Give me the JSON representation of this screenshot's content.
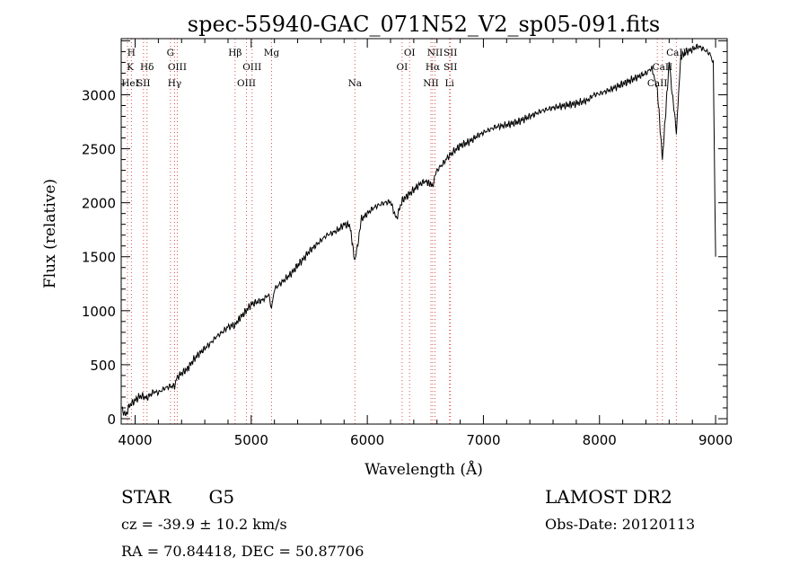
{
  "chart_data": {
    "type": "line",
    "title": "spec-55940-GAC_071N52_V2_sp05-091.fits",
    "xlabel": "Wavelength (Å)",
    "ylabel": "Flux (relative)",
    "xlim": [
      3880,
      9100
    ],
    "ylim": [
      -50,
      3520
    ],
    "xticks": [
      4000,
      5000,
      6000,
      7000,
      8000,
      9000
    ],
    "yticks": [
      0,
      500,
      1000,
      1500,
      2000,
      2500,
      3000
    ],
    "grid": false,
    "series": [
      {
        "x": [
          3890,
          3920,
          3950,
          3980,
          4000,
          4030,
          4060,
          4100,
          4130,
          4160,
          4200,
          4250,
          4300,
          4340,
          4360,
          4400,
          4450,
          4500,
          4550,
          4600,
          4650,
          4700,
          4750,
          4800,
          4861,
          4900,
          4950,
          5000,
          5050,
          5100,
          5150,
          5175,
          5200,
          5250,
          5300,
          5350,
          5400,
          5450,
          5500,
          5550,
          5600,
          5650,
          5700,
          5750,
          5800,
          5850,
          5893,
          5950,
          6000,
          6050,
          6100,
          6150,
          6200,
          6250,
          6300,
          6350,
          6400,
          6450,
          6500,
          6563,
          6600,
          6650,
          6700,
          6750,
          6800,
          6850,
          6900,
          6950,
          7000,
          7100,
          7200,
          7300,
          7400,
          7500,
          7600,
          7700,
          7800,
          7900,
          7950,
          8000,
          8100,
          8200,
          8300,
          8400,
          8450,
          8498,
          8542,
          8600,
          8662,
          8700,
          8750,
          8800,
          8850,
          8900,
          8950,
          8980,
          9000
        ],
        "y": [
          80,
          30,
          120,
          150,
          170,
          200,
          210,
          190,
          220,
          250,
          240,
          280,
          300,
          300,
          380,
          420,
          460,
          540,
          600,
          650,
          700,
          760,
          800,
          850,
          870,
          930,
          990,
          1060,
          1080,
          1100,
          1150,
          1020,
          1200,
          1250,
          1300,
          1350,
          1420,
          1480,
          1550,
          1600,
          1650,
          1700,
          1720,
          1750,
          1800,
          1790,
          1450,
          1850,
          1900,
          1950,
          1980,
          2000,
          2010,
          1850,
          2020,
          2070,
          2120,
          2170,
          2200,
          2160,
          2300,
          2360,
          2430,
          2480,
          2530,
          2550,
          2580,
          2620,
          2650,
          2700,
          2720,
          2750,
          2800,
          2850,
          2880,
          2900,
          2920,
          2950,
          3000,
          3010,
          3050,
          3100,
          3150,
          3200,
          3250,
          3050,
          2400,
          3300,
          2650,
          3350,
          3400,
          3420,
          3450,
          3420,
          3380,
          3300,
          1500
        ]
      }
    ],
    "lines": [
      {
        "wave": 3820,
        "labels": [
          {
            "row": 3,
            "text": "HeI"
          }
        ]
      },
      {
        "wave": 3934,
        "labels": [
          {
            "row": 2,
            "text": "K"
          }
        ]
      },
      {
        "wave": 3968,
        "labels": [
          {
            "row": 1,
            "text": "H"
          }
        ]
      },
      {
        "wave": 4072,
        "labels": [
          {
            "row": 3,
            "text": "SII"
          }
        ]
      },
      {
        "wave": 4102,
        "labels": [
          {
            "row": 2,
            "text": "Hδ"
          }
        ]
      },
      {
        "wave": 4304,
        "labels": [
          {
            "row": 1,
            "text": "G"
          }
        ]
      },
      {
        "wave": 4340,
        "labels": [
          {
            "row": 3,
            "text": "Hγ"
          }
        ]
      },
      {
        "wave": 4363,
        "labels": [
          {
            "row": 2,
            "text": "OIII"
          }
        ]
      },
      {
        "wave": 4861,
        "labels": [
          {
            "row": 1,
            "text": "Hβ"
          }
        ]
      },
      {
        "wave": 4959,
        "labels": [
          {
            "row": 3,
            "text": "OIII"
          }
        ]
      },
      {
        "wave": 5007,
        "labels": [
          {
            "row": 2,
            "text": "OIII"
          }
        ]
      },
      {
        "wave": 5175,
        "labels": [
          {
            "row": 1,
            "text": "Mg"
          }
        ]
      },
      {
        "wave": 5893,
        "labels": [
          {
            "row": 3,
            "text": "Na"
          }
        ]
      },
      {
        "wave": 6300,
        "labels": [
          {
            "row": 2,
            "text": "OI"
          }
        ]
      },
      {
        "wave": 6364,
        "labels": [
          {
            "row": 1,
            "text": "OI"
          }
        ]
      },
      {
        "wave": 6548,
        "labels": [
          {
            "row": 3,
            "text": "NII"
          }
        ]
      },
      {
        "wave": 6563,
        "labels": [
          {
            "row": 2,
            "text": "Hα"
          }
        ]
      },
      {
        "wave": 6583,
        "labels": [
          {
            "row": 1,
            "text": "NII"
          }
        ]
      },
      {
        "wave": 6716,
        "labels": [
          {
            "row": 1,
            "text": "SII"
          },
          {
            "row": 2,
            "text": "SII"
          }
        ]
      },
      {
        "wave": 6708,
        "labels": [
          {
            "row": 3,
            "text": "Li"
          }
        ]
      },
      {
        "wave": 8498,
        "labels": [
          {
            "row": 3,
            "text": "CaII"
          }
        ]
      },
      {
        "wave": 8542,
        "labels": [
          {
            "row": 2,
            "text": "CaII"
          }
        ]
      },
      {
        "wave": 8662,
        "labels": [
          {
            "row": 1,
            "text": "CaII"
          }
        ]
      }
    ]
  },
  "footer": {
    "object": "STAR",
    "subclass": "G5",
    "survey": "LAMOST DR2",
    "redshift": "cz = -39.9 ± 10.2 km/s",
    "obs_date": "Obs-Date: 20120113",
    "coords": "RA =  70.84418, DEC =  50.87706"
  },
  "colors": {
    "spectrum": "#000000",
    "line_markers": "#d9534f"
  }
}
